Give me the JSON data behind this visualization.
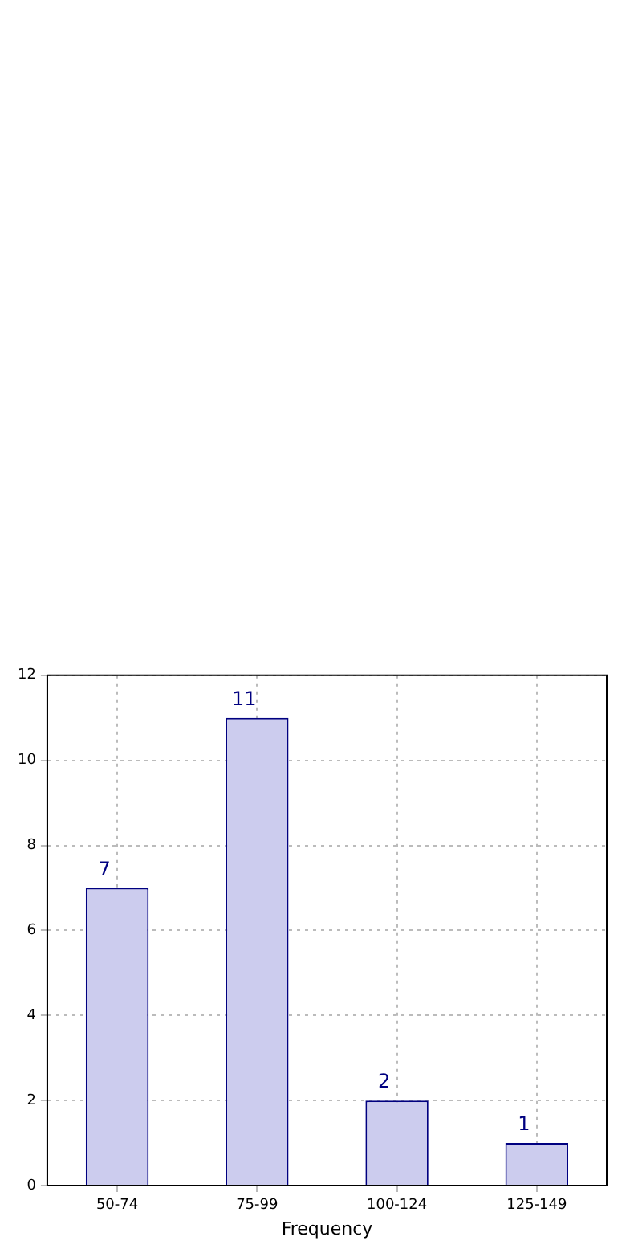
{
  "chart_data": {
    "type": "bar",
    "xlabel": "Frequency",
    "categories": [
      "50-74",
      "75-99",
      "100-124",
      "125-149"
    ],
    "values": [
      7,
      11,
      2,
      1
    ],
    "color": "#ccccee",
    "ylim": [
      0,
      12
    ],
    "yticks": [
      0,
      2,
      4,
      6,
      8,
      10,
      12
    ],
    "grid": true,
    "data_labels": true
  }
}
